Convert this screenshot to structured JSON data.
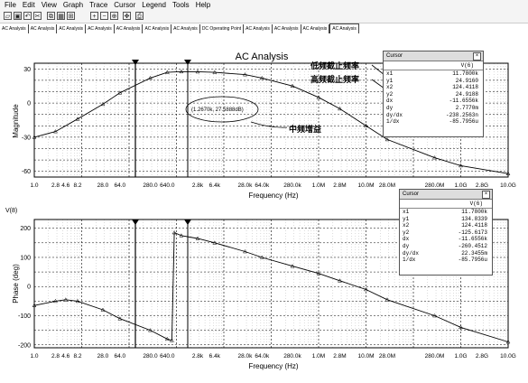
{
  "menu": [
    "File",
    "Edit",
    "View",
    "Graph",
    "Trace",
    "Cursor",
    "Legend",
    "Tools",
    "Help"
  ],
  "toolbar_icons": [
    "open-icon",
    "save-icon",
    "undo-icon",
    "cut-icon",
    "copy-icon",
    "grid-icon",
    "fit-icon",
    "zoom-in-icon",
    "zoom-out-icon",
    "zoom-area-icon",
    "pan-icon",
    "print-icon"
  ],
  "tabs": [
    "AC Analysis",
    "AC Analysis",
    "AC Analysis",
    "AC Analysis",
    "AC Analysis",
    "AC Analysis",
    "AC Analysis",
    "DC Operating Point",
    "AC Analysis",
    "AC Analysis",
    "AC Analysis",
    "AC Analysis"
  ],
  "active_tab": 11,
  "top_plot": {
    "title": "AC Analysis",
    "ylabel": "Magnitude",
    "xlabel": "Frequency (Hz)",
    "yticks": [
      "30",
      "0",
      "-30",
      "-60"
    ],
    "xticks": [
      "1.0",
      "2.8",
      "4.6",
      "8.2",
      "28.0",
      "64.0",
      "280.0",
      "640.0",
      "2.8k",
      "6.4k",
      "28.0k",
      "64.0k",
      "280.0k",
      "1.0M",
      "2.8M",
      "10.0M",
      "28.0M",
      "280.0M",
      "1.0G",
      "2.8G",
      "10.0G"
    ],
    "marker_label": "(1.2670k, 27.5888dB)",
    "ann_low_cutoff": "低频截止频率",
    "ann_high_cutoff": "高频截止频率",
    "ann_mid_gain": "中频增益"
  },
  "bottom_plot": {
    "header_label": "V(8)",
    "ylabel": "Phase (deg)",
    "xlabel": "Frequency (Hz)",
    "yticks": [
      "200",
      "100",
      "0",
      "-100",
      "-200"
    ],
    "xticks": [
      "1.0",
      "2.8",
      "4.6",
      "8.2",
      "28.0",
      "64.0",
      "280.0",
      "640.0",
      "2.8k",
      "6.4k",
      "28.0k",
      "64.0k",
      "280.0k",
      "1.0M",
      "2.8M",
      "10.0M",
      "28.0M",
      "280.0M",
      "1.0G",
      "2.8G",
      "10.0G"
    ]
  },
  "cursor_top": {
    "title": "Cursor",
    "header": "V(6)",
    "rows": [
      {
        "k": "x1",
        "v": "11.7800k"
      },
      {
        "k": "y1",
        "v": "24.9160"
      },
      {
        "k": "x2",
        "v": "124.4118"
      },
      {
        "k": "y2",
        "v": "24.9188"
      },
      {
        "k": "dx",
        "v": "-11.6556k"
      },
      {
        "k": "dy",
        "v": "2.7770m"
      },
      {
        "k": "dy/dx",
        "v": "-238.2563n"
      },
      {
        "k": "1/dx",
        "v": "-85.7956u"
      }
    ]
  },
  "cursor_bottom": {
    "title": "Cursor",
    "header": "V(6)",
    "rows": [
      {
        "k": "x1",
        "v": "11.7800k"
      },
      {
        "k": "y1",
        "v": "134.8339"
      },
      {
        "k": "x2",
        "v": "124.4118"
      },
      {
        "k": "y2",
        "v": "-125.6173"
      },
      {
        "k": "dx",
        "v": "-11.6556k"
      },
      {
        "k": "dy",
        "v": "-260.4512"
      },
      {
        "k": "dy/dx",
        "v": "22.3455m"
      },
      {
        "k": "1/dx",
        "v": "-85.7956u"
      }
    ]
  },
  "chart_data": [
    {
      "type": "line",
      "title": "AC Analysis",
      "xlabel": "Frequency (Hz)",
      "ylabel": "Magnitude",
      "xscale": "log",
      "xlim": [
        1,
        10000000000
      ],
      "ylim": [
        -65,
        35
      ],
      "grid": true,
      "x": [
        1,
        2.8,
        8.2,
        28,
        64,
        280,
        640,
        1267,
        2800,
        6400,
        28000,
        64000,
        280000,
        1000000,
        2800000,
        10000000,
        28000000,
        280000000,
        1000000000,
        10000000000
      ],
      "series": [
        {
          "values": [
            -30,
            -25,
            -14,
            -1,
            9,
            22,
            27,
            27.6,
            27.5,
            27,
            25,
            22,
            15,
            5,
            -5,
            -20,
            -32,
            -48,
            -55,
            -62
          ]
        }
      ]
    },
    {
      "type": "line",
      "xlabel": "Frequency (Hz)",
      "ylabel": "Phase (deg)",
      "xscale": "log",
      "xlim": [
        1,
        10000000000
      ],
      "ylim": [
        -210,
        230
      ],
      "grid": true,
      "x": [
        1,
        2.8,
        4.6,
        8.2,
        28,
        64,
        280,
        640,
        800,
        900,
        1267,
        2800,
        6400,
        28000,
        64000,
        280000,
        1000000,
        2800000,
        10000000,
        28000000,
        280000000,
        1000000000,
        10000000000
      ],
      "series": [
        {
          "values": [
            -65,
            -50,
            -45,
            -50,
            -80,
            -110,
            -150,
            -180,
            -185,
            185,
            175,
            165,
            150,
            120,
            100,
            70,
            45,
            20,
            -10,
            -45,
            -100,
            -140,
            -190
          ]
        }
      ]
    }
  ]
}
